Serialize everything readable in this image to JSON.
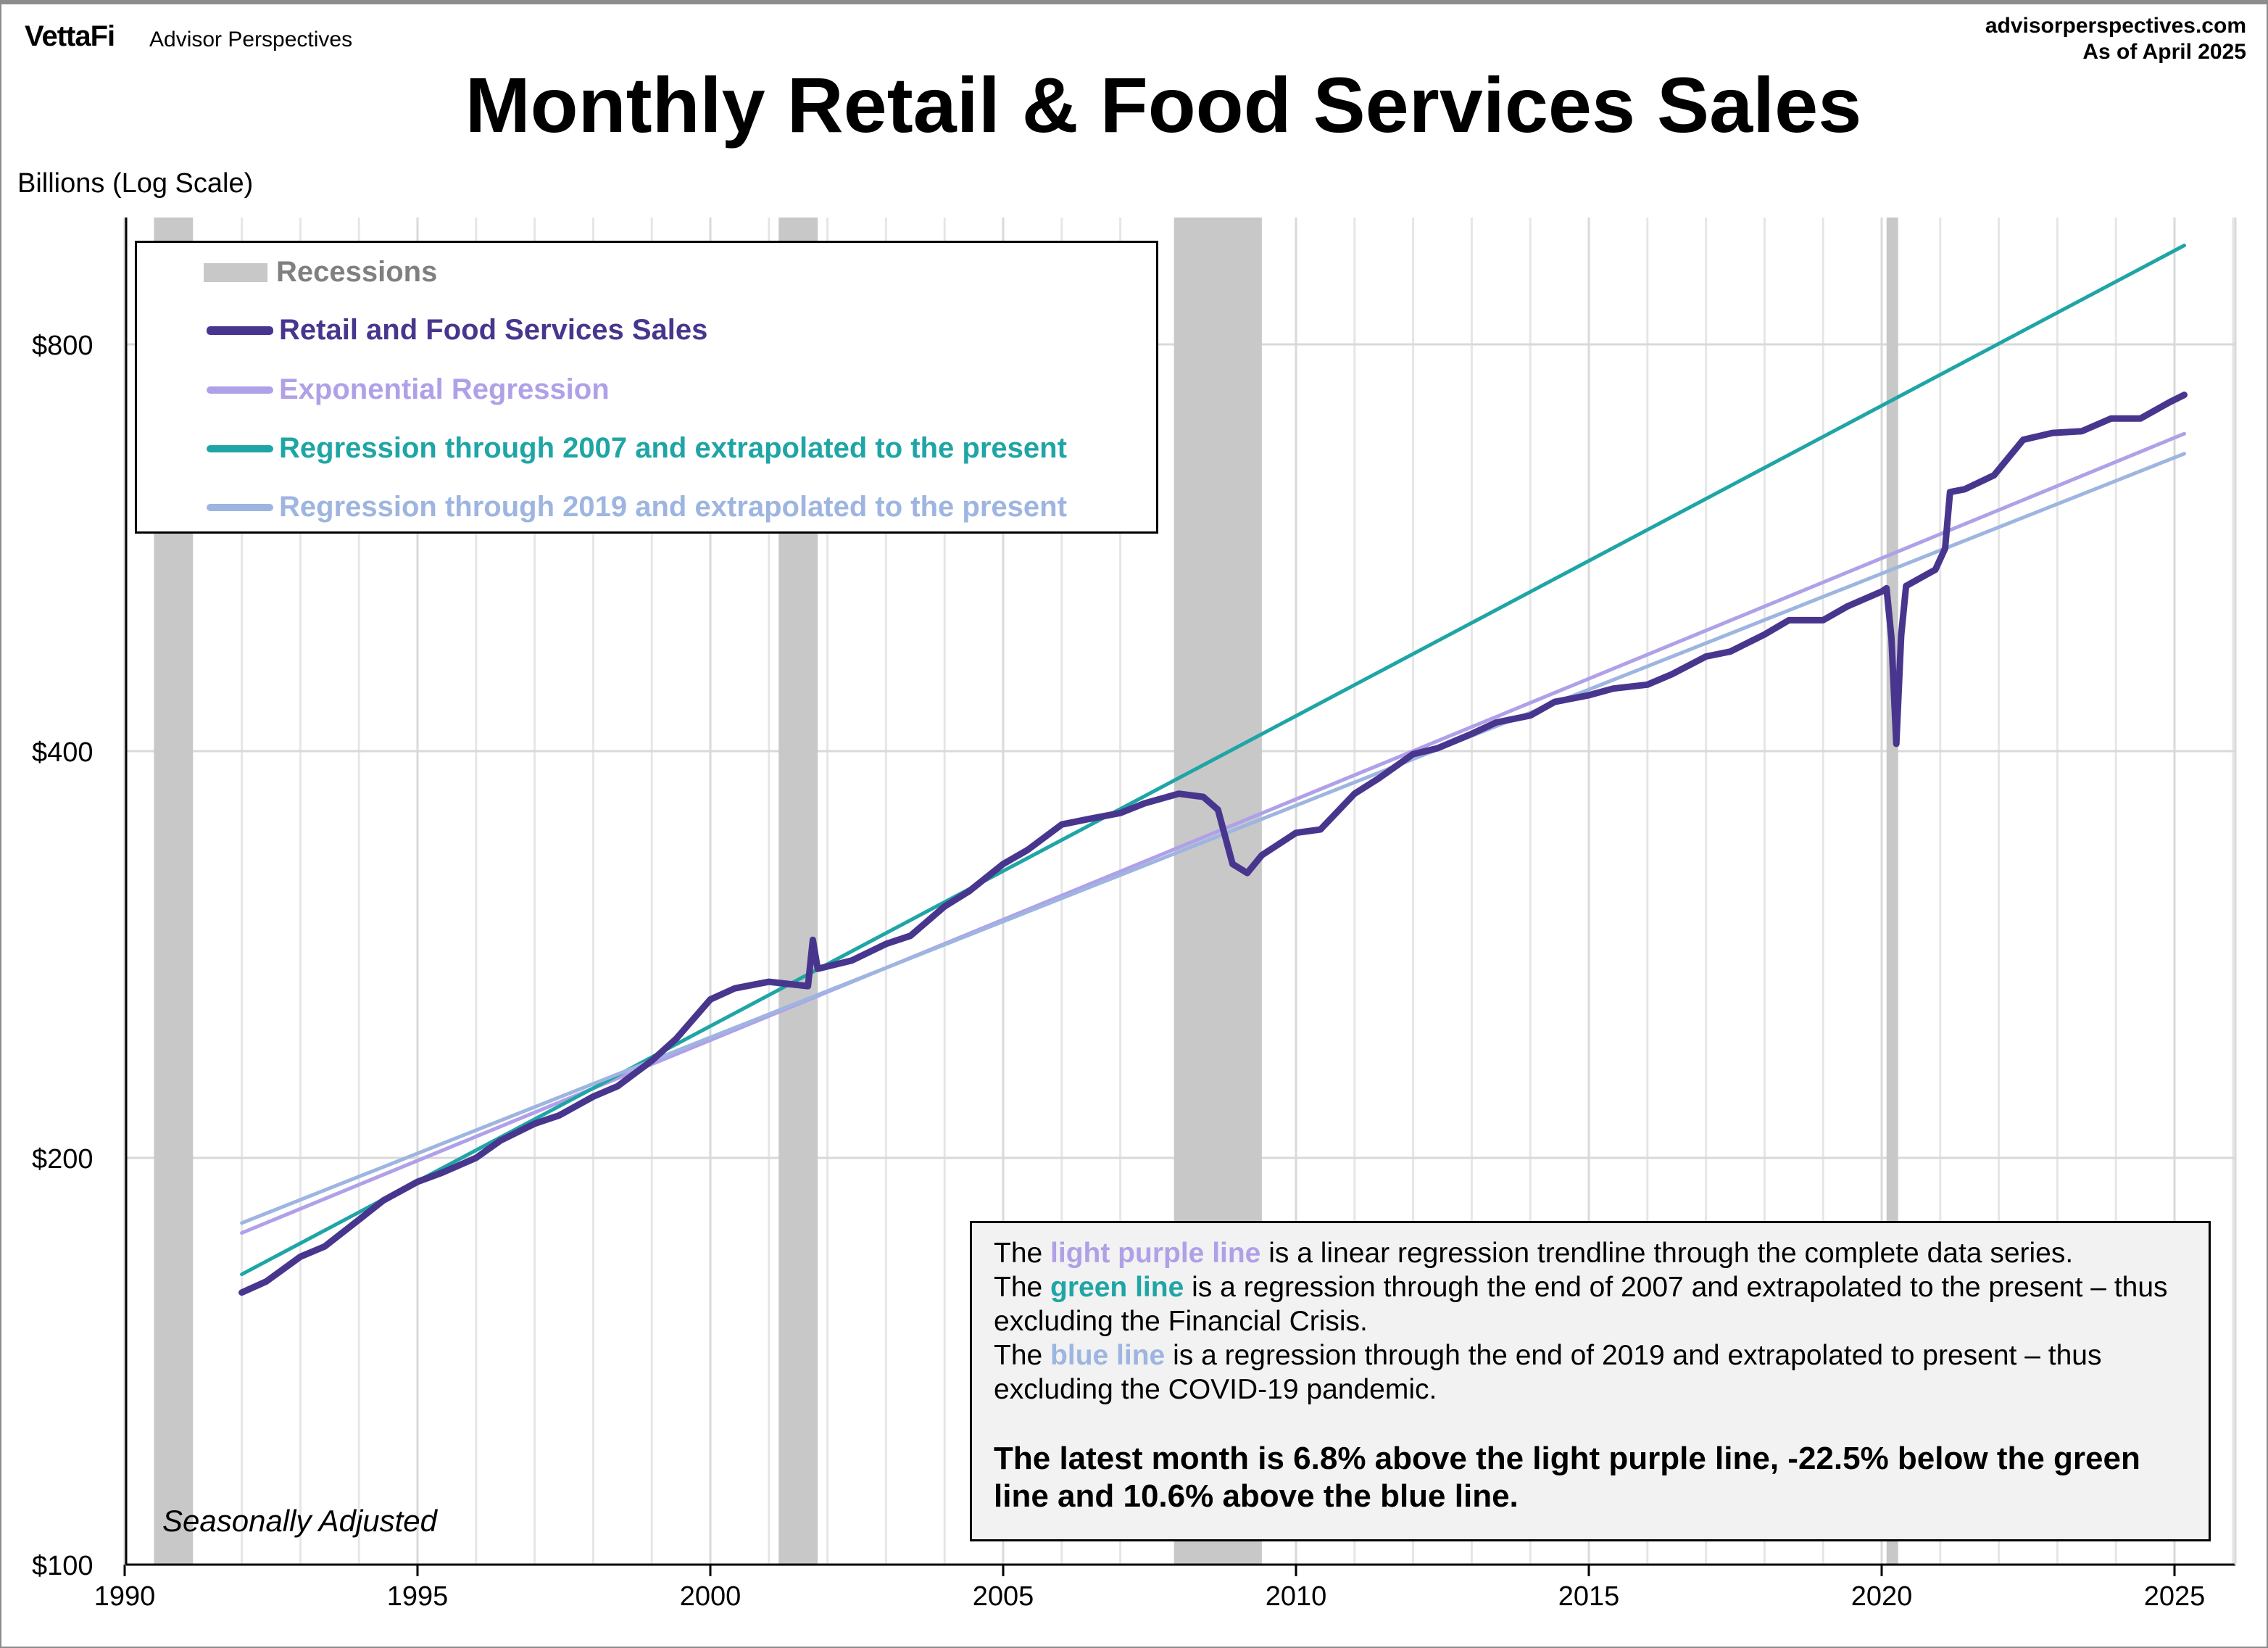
{
  "header": {
    "brand": "VettaFi",
    "brand_sub": "Advisor Perspectives",
    "site": "advisorperspectives.com",
    "as_of": "As of April 2025",
    "title": "Monthly Retail & Food Services Sales",
    "y_axis_label": "Billions (Log Scale)"
  },
  "legend": {
    "recessions": "Recessions",
    "sales": "Retail and Food Services Sales",
    "exp": "Exponential Regression",
    "reg2007": "Regression through 2007 and extrapolated to the present",
    "reg2019": "Regression through 2019 and extrapolated to the present"
  },
  "note": {
    "l1a": "The ",
    "l1b": "light purple line",
    "l1c": " is a linear regression trendline  through the complete data series.",
    "l2a": "The ",
    "l2b": "green line",
    "l2c": " is a regression through the end of 2007 and extrapolated to the present  – thus excluding the Financial Crisis.",
    "l3a": "The ",
    "l3b": "blue line",
    "l3c": " is a regression through the end of 2019 and extrapolated to present  – thus excluding the COVID-19 pandemic.",
    "summary": "The latest month is 6.8% above the light purple line, -22.5% below the green line and 10.6% above the blue line."
  },
  "seasonally_adjusted": "Seasonally Adjusted",
  "colors": {
    "sales": "#48368e",
    "exp": "#b0a0e8",
    "reg2007": "#1fa5a5",
    "reg2019": "#9db5e0",
    "recession": "#c8c8c8"
  },
  "chart_data": {
    "type": "line",
    "title": "Monthly Retail & Food Services Sales",
    "ylabel": "Billions (Log Scale)",
    "y_scale": "log",
    "ylim": [
      100,
      1000
    ],
    "xlim": [
      1990,
      2026
    ],
    "x_ticks": [
      "1990",
      "1995",
      "2000",
      "2005",
      "2010",
      "2015",
      "2020",
      "2025"
    ],
    "y_ticks": [
      {
        "value": 100,
        "label": "$100"
      },
      {
        "value": 200,
        "label": "$200"
      },
      {
        "value": 400,
        "label": "$400"
      },
      {
        "value": 800,
        "label": "$800"
      }
    ],
    "grid": true,
    "legend_position": "top-left",
    "recessions": [
      [
        "1990-07",
        "1991-03"
      ],
      [
        "2001-03",
        "2001-11"
      ],
      [
        "2007-12",
        "2009-06"
      ],
      [
        "2020-02",
        "2020-04"
      ]
    ],
    "series": [
      {
        "name": "Retail and Food Services Sales",
        "points": [
          [
            "1992-01",
            159
          ],
          [
            "1992-06",
            162
          ],
          [
            "1993-01",
            169
          ],
          [
            "1993-06",
            172
          ],
          [
            "1994-01",
            180
          ],
          [
            "1994-06",
            186
          ],
          [
            "1995-01",
            192
          ],
          [
            "1995-06",
            195
          ],
          [
            "1996-01",
            200
          ],
          [
            "1996-06",
            206
          ],
          [
            "1997-01",
            212
          ],
          [
            "1997-06",
            215
          ],
          [
            "1998-01",
            222
          ],
          [
            "1998-06",
            226
          ],
          [
            "1999-01",
            236
          ],
          [
            "1999-06",
            245
          ],
          [
            "2000-01",
            262
          ],
          [
            "2000-06",
            267
          ],
          [
            "2001-01",
            270
          ],
          [
            "2001-09",
            268
          ],
          [
            "2001-10",
            290
          ],
          [
            "2001-11",
            276
          ],
          [
            "2002-06",
            280
          ],
          [
            "2003-01",
            288
          ],
          [
            "2003-06",
            292
          ],
          [
            "2004-01",
            307
          ],
          [
            "2004-06",
            315
          ],
          [
            "2005-01",
            330
          ],
          [
            "2005-06",
            338
          ],
          [
            "2006-01",
            353
          ],
          [
            "2006-06",
            356
          ],
          [
            "2007-01",
            360
          ],
          [
            "2007-06",
            366
          ],
          [
            "2008-01",
            372
          ],
          [
            "2008-06",
            370
          ],
          [
            "2008-09",
            362
          ],
          [
            "2008-12",
            330
          ],
          [
            "2009-03",
            325
          ],
          [
            "2009-06",
            335
          ],
          [
            "2010-01",
            348
          ],
          [
            "2010-06",
            350
          ],
          [
            "2011-01",
            372
          ],
          [
            "2011-06",
            382
          ],
          [
            "2012-01",
            398
          ],
          [
            "2012-06",
            402
          ],
          [
            "2013-01",
            412
          ],
          [
            "2013-06",
            420
          ],
          [
            "2014-01",
            425
          ],
          [
            "2014-06",
            435
          ],
          [
            "2015-01",
            440
          ],
          [
            "2015-06",
            445
          ],
          [
            "2016-01",
            448
          ],
          [
            "2016-06",
            456
          ],
          [
            "2017-01",
            470
          ],
          [
            "2017-06",
            474
          ],
          [
            "2018-01",
            488
          ],
          [
            "2018-06",
            500
          ],
          [
            "2019-01",
            500
          ],
          [
            "2019-06",
            512
          ],
          [
            "2020-01",
            525
          ],
          [
            "2020-02",
            528
          ],
          [
            "2020-03",
            485
          ],
          [
            "2020-04",
            405
          ],
          [
            "2020-05",
            487
          ],
          [
            "2020-06",
            530
          ],
          [
            "2020-12",
            545
          ],
          [
            "2021-02",
            565
          ],
          [
            "2021-03",
            622
          ],
          [
            "2021-06",
            625
          ],
          [
            "2021-12",
            640
          ],
          [
            "2022-06",
            680
          ],
          [
            "2022-12",
            688
          ],
          [
            "2023-06",
            690
          ],
          [
            "2023-12",
            705
          ],
          [
            "2024-06",
            705
          ],
          [
            "2024-12",
            725
          ],
          [
            "2025-03",
            734
          ]
        ]
      },
      {
        "name": "Exponential Regression",
        "points": [
          [
            "1992-01",
            176
          ],
          [
            "2025-03",
            687
          ]
        ]
      },
      {
        "name": "Regression through 2007 and extrapolated to the present",
        "points": [
          [
            "1992-01",
            164
          ],
          [
            "2025-03",
            947
          ]
        ]
      },
      {
        "name": "Regression through 2019 and extrapolated to the present",
        "points": [
          [
            "1992-01",
            179
          ],
          [
            "2025-03",
            664
          ]
        ]
      }
    ]
  }
}
